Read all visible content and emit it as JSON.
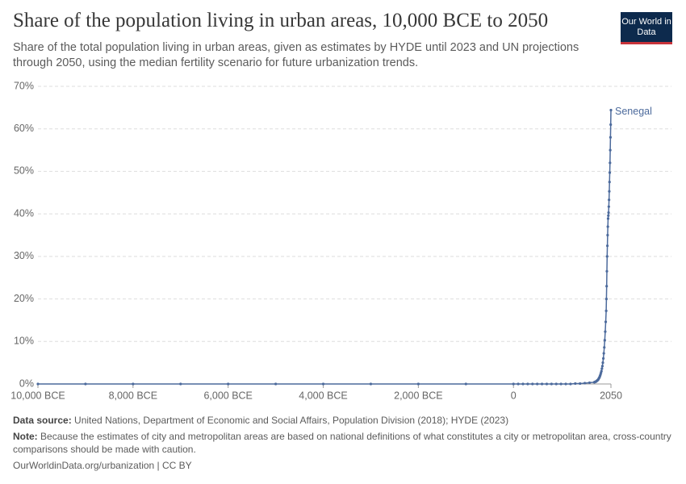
{
  "chart_data": {
    "type": "line",
    "title": "Share of the population living in urban areas, 10,000 BCE to 2050",
    "subtitle": "Share of the total population living in urban areas, given as estimates by HYDE until 2023 and UN projections through 2050, using the median fertility scenario for future urbanization trends.",
    "x": [
      -10000,
      -9000,
      -8000,
      -7000,
      -6000,
      -5000,
      -4000,
      -3000,
      -2000,
      -1000,
      0,
      100,
      200,
      300,
      400,
      500,
      600,
      700,
      800,
      900,
      1000,
      1100,
      1200,
      1300,
      1400,
      1500,
      1600,
      1700,
      1710,
      1720,
      1730,
      1740,
      1750,
      1760,
      1770,
      1780,
      1790,
      1800,
      1810,
      1820,
      1830,
      1840,
      1850,
      1860,
      1870,
      1880,
      1890,
      1900,
      1910,
      1920,
      1930,
      1940,
      1950,
      1955,
      1960,
      1965,
      1970,
      1975,
      1980,
      1985,
      1990,
      1995,
      2000,
      2005,
      2010,
      2015,
      2020,
      2025,
      2030,
      2035,
      2040,
      2045,
      2050
    ],
    "series": [
      {
        "name": "Senegal",
        "color": "#4c6a9c",
        "values": [
          0,
          0,
          0,
          0,
          0,
          0,
          0,
          0,
          0,
          0,
          0,
          0,
          0,
          0,
          0,
          0,
          0,
          0,
          0,
          0,
          0,
          0,
          0,
          0.1,
          0.1,
          0.2,
          0.3,
          0.4,
          0.45,
          0.5,
          0.55,
          0.6,
          0.7,
          0.8,
          0.9,
          1.0,
          1.2,
          1.4,
          1.6,
          1.9,
          2.2,
          2.6,
          3.0,
          3.6,
          4.2,
          5.0,
          6.0,
          7.2,
          8.6,
          10.3,
          12.3,
          14.6,
          17.2,
          20.0,
          23.0,
          26.5,
          30.0,
          32.5,
          35.0,
          37.0,
          38.9,
          39.6,
          40.3,
          41.7,
          43.3,
          45.3,
          47.5,
          49.7,
          52.0,
          55.0,
          58.0,
          61.0,
          64.4
        ]
      }
    ],
    "xlim": [
      -10000,
      2050
    ],
    "xticks": [
      {
        "value": -10000,
        "label": "10,000 BCE"
      },
      {
        "value": -8000,
        "label": "8,000 BCE"
      },
      {
        "value": -6000,
        "label": "6,000 BCE"
      },
      {
        "value": -4000,
        "label": "4,000 BCE"
      },
      {
        "value": -2000,
        "label": "2,000 BCE"
      },
      0,
      2050
    ],
    "ylim": [
      0,
      70
    ],
    "yticks": [
      {
        "value": 0,
        "label": "0%"
      },
      {
        "value": 10,
        "label": "10%"
      },
      {
        "value": 20,
        "label": "20%"
      },
      {
        "value": 30,
        "label": "30%"
      },
      {
        "value": 40,
        "label": "40%"
      },
      {
        "value": 50,
        "label": "50%"
      },
      {
        "value": 60,
        "label": "60%"
      },
      {
        "value": 70,
        "label": "70%"
      }
    ],
    "grid": true
  },
  "logo": {
    "text": "Our World in Data"
  },
  "footer": {
    "source_label": "Data source:",
    "source": "United Nations, Department of Economic and Social Affairs, Population Division (2018); HYDE (2023)",
    "note_label": "Note:",
    "note": "Because the estimates of city and metropolitan areas are based on national definitions of what constitutes a city or metropolitan area, cross-country comparisons should be made with caution.",
    "credit": "OurWorldinData.org/urbanization | CC BY"
  }
}
